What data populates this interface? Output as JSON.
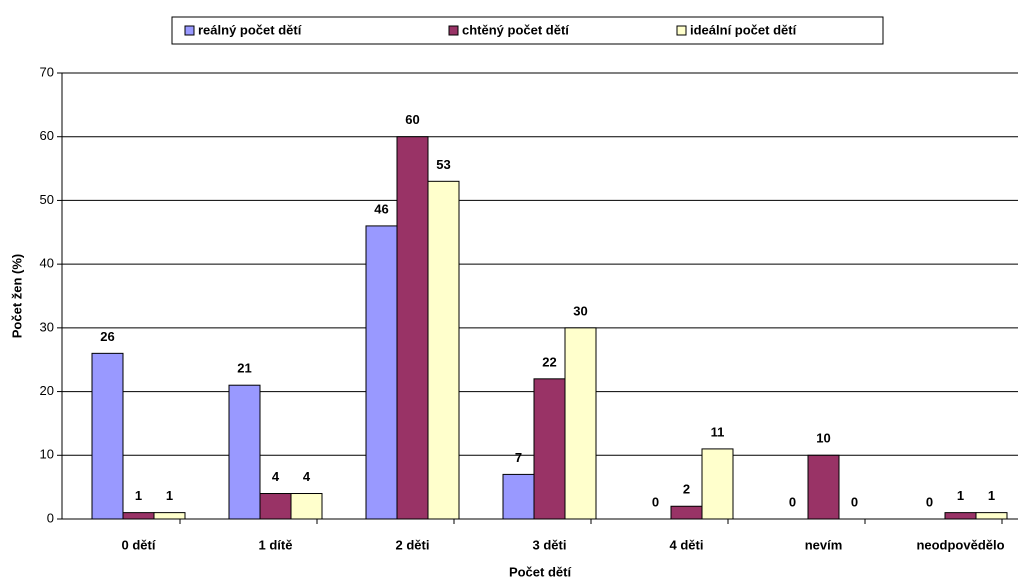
{
  "chart_data": {
    "type": "bar",
    "xlabel": "Počet dětí",
    "ylabel": "Počet žen (%)",
    "categories": [
      "0 dětí",
      "1 dítě",
      "2 děti",
      "3 děti",
      "4 děti",
      "nevím",
      "neodpovědělo"
    ],
    "series": [
      {
        "name": "reálný počet dětí",
        "color": "#9999ff",
        "values": [
          26,
          21,
          46,
          7,
          0,
          0,
          0
        ]
      },
      {
        "name": "chtěný počet dětí",
        "color": "#993366",
        "values": [
          1,
          4,
          60,
          22,
          2,
          10,
          1
        ]
      },
      {
        "name": "ideální počet dětí",
        "color": "#ffffcc",
        "values": [
          1,
          4,
          53,
          30,
          11,
          0,
          1
        ]
      }
    ],
    "ylim": [
      0,
      70
    ],
    "yticks": [
      0,
      10,
      20,
      30,
      40,
      50,
      60,
      70
    ],
    "grid": true,
    "legend": "top"
  }
}
